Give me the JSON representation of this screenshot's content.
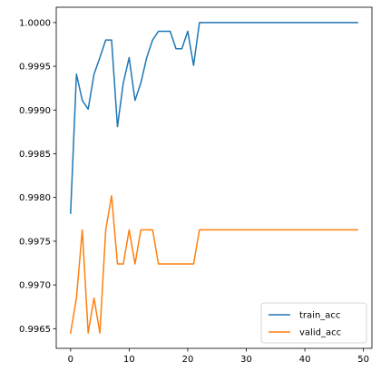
{
  "chart_data": {
    "type": "line",
    "title": "",
    "xlabel": "",
    "ylabel": "",
    "xlim": [
      -2.45,
      51.45
    ],
    "ylim": [
      0.996275,
      1.000175
    ],
    "xticks": [
      0,
      10,
      20,
      30,
      40,
      50
    ],
    "xtick_labels": [
      "0",
      "10",
      "20",
      "30",
      "40",
      "50"
    ],
    "yticks": [
      0.9965,
      0.997,
      0.9975,
      0.998,
      0.9985,
      0.999,
      0.9995,
      1.0
    ],
    "ytick_labels": [
      "0.9965",
      "0.9970",
      "0.9975",
      "0.9980",
      "0.9985",
      "0.9990",
      "0.9995",
      "1.0000"
    ],
    "grid": false,
    "legend_position": "lower right",
    "series": [
      {
        "name": "train_acc",
        "color": "#1f77b4",
        "x": [
          0,
          1,
          2,
          3,
          4,
          5,
          6,
          7,
          8,
          9,
          10,
          11,
          12,
          13,
          14,
          15,
          16,
          17,
          18,
          19,
          20,
          21,
          22,
          23,
          24,
          25,
          26,
          27,
          28,
          29,
          30,
          31,
          32,
          33,
          34,
          35,
          36,
          37,
          38,
          39,
          40,
          41,
          42,
          43,
          44,
          45,
          46,
          47,
          48,
          49
        ],
        "y": [
          0.99782,
          0.99941,
          0.99911,
          0.99901,
          0.99941,
          0.9996,
          0.9998,
          0.9998,
          0.99881,
          0.99931,
          0.9996,
          0.99911,
          0.99931,
          0.9996,
          0.9998,
          0.9999,
          0.9999,
          0.9999,
          0.9997,
          0.9997,
          0.9999,
          0.99951,
          1.0,
          1.0,
          1.0,
          1.0,
          1.0,
          1.0,
          1.0,
          1.0,
          1.0,
          1.0,
          1.0,
          1.0,
          1.0,
          1.0,
          1.0,
          1.0,
          1.0,
          1.0,
          1.0,
          1.0,
          1.0,
          1.0,
          1.0,
          1.0,
          1.0,
          1.0,
          1.0,
          1.0
        ]
      },
      {
        "name": "valid_acc",
        "color": "#ff7f0e",
        "x": [
          0,
          1,
          2,
          3,
          4,
          5,
          6,
          7,
          8,
          9,
          10,
          11,
          12,
          13,
          14,
          15,
          16,
          17,
          18,
          19,
          20,
          21,
          22,
          23,
          24,
          25,
          26,
          27,
          28,
          29,
          30,
          31,
          32,
          33,
          34,
          35,
          36,
          37,
          38,
          39,
          40,
          41,
          42,
          43,
          44,
          45,
          46,
          47,
          48,
          49
        ],
        "y": [
          0.99645,
          0.99685,
          0.99763,
          0.99645,
          0.99685,
          0.99645,
          0.99763,
          0.99802,
          0.99724,
          0.99724,
          0.99763,
          0.99724,
          0.99763,
          0.99763,
          0.99763,
          0.99724,
          0.99724,
          0.99724,
          0.99724,
          0.99724,
          0.99724,
          0.99724,
          0.99763,
          0.99763,
          0.99763,
          0.99763,
          0.99763,
          0.99763,
          0.99763,
          0.99763,
          0.99763,
          0.99763,
          0.99763,
          0.99763,
          0.99763,
          0.99763,
          0.99763,
          0.99763,
          0.99763,
          0.99763,
          0.99763,
          0.99763,
          0.99763,
          0.99763,
          0.99763,
          0.99763,
          0.99763,
          0.99763,
          0.99763,
          0.99763
        ]
      }
    ]
  }
}
